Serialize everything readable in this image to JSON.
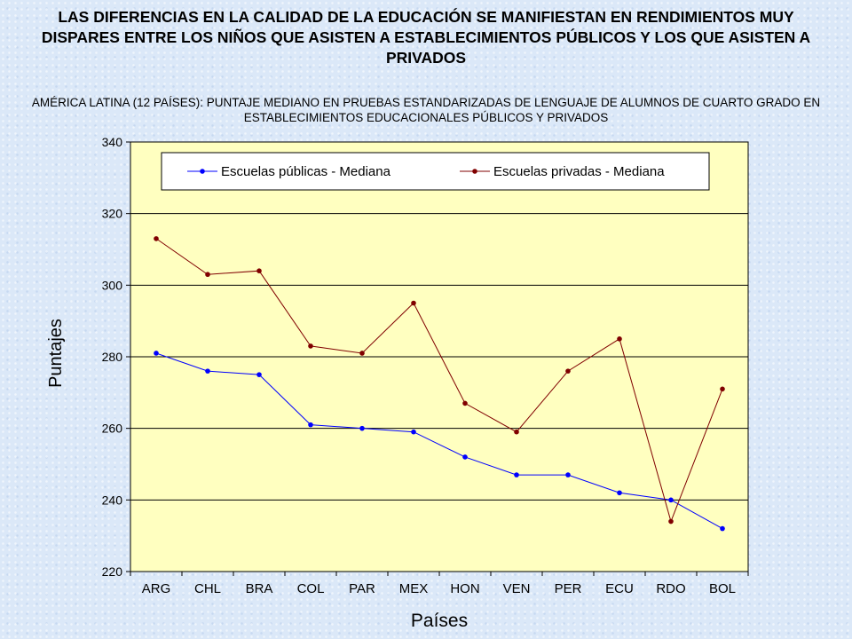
{
  "header": {
    "title": "LAS DIFERENCIAS EN LA CALIDAD DE LA EDUCACIÓN SE MANIFIESTAN EN RENDIMIENTOS MUY DISPARES ENTRE LOS NIÑOS QUE ASISTEN A ESTABLECIMIENTOS PÚBLICOS Y LOS QUE ASISTEN A PRIVADOS",
    "subtitle": "AMÉRICA LATINA (12 PAÍSES): PUNTAJE MEDIANO EN PRUEBAS ESTANDARIZADAS DE LENGUAJE DE ALUMNOS DE CUARTO GRADO EN ESTABLECIMIENTOS EDUCACIONALES PÚBLICOS Y PRIVADOS"
  },
  "chart_data": {
    "type": "line",
    "xlabel": "Países",
    "ylabel": "Puntajes",
    "ylim": [
      220,
      340
    ],
    "yticks": [
      220,
      240,
      260,
      280,
      300,
      320,
      340
    ],
    "grid": true,
    "legend_position": "top",
    "plot_background": "#ffffc0",
    "categories": [
      "ARG",
      "CHL",
      "BRA",
      "COL",
      "PAR",
      "MEX",
      "HON",
      "VEN",
      "PER",
      "ECU",
      "RDO",
      "BOL"
    ],
    "series": [
      {
        "name": "Escuelas públicas - Mediana",
        "color": "#0000ff",
        "values": [
          281,
          276,
          275,
          261,
          260,
          259,
          252,
          247,
          247,
          242,
          240,
          232
        ]
      },
      {
        "name": "Escuelas privadas - Mediana",
        "color": "#800000",
        "values": [
          313,
          303,
          304,
          283,
          281,
          295,
          267,
          259,
          276,
          285,
          234,
          271
        ]
      }
    ]
  }
}
